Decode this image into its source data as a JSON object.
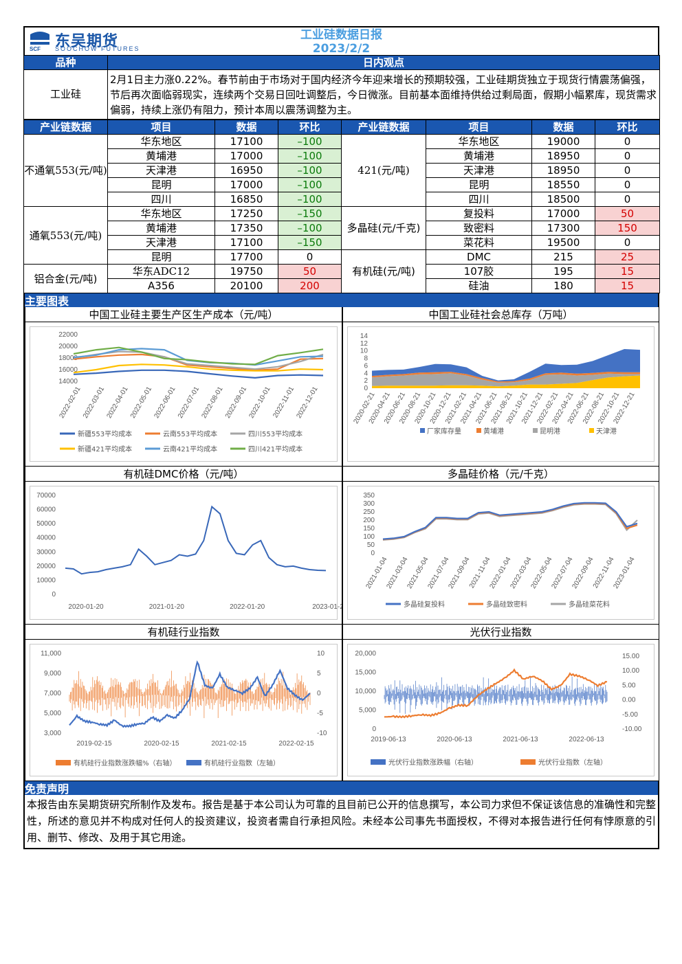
{
  "header": {
    "logo_cn": "东吴期货",
    "logo_en": "SOOCHOW FUTURES",
    "logo_abbr": "SCF",
    "title": "工业硅数据日报",
    "date": "2023/2/2"
  },
  "summary": {
    "col_product": "品种",
    "col_view": "日内观点",
    "product": "工业硅",
    "view": "2月1日主力涨0.22%。春节前由于市场对于国内经济今年迎来增长的预期较强，工业硅期货独立于现货行情震荡偏强，节后再次面临弱现实，连续两个交易日回吐调整后，今日微涨。目前基本面维持供给过剩局面，假期小幅累库，现货需求偏弱，持续上涨仍有阻力，预计本周以震荡调整为主。"
  },
  "table": {
    "headers": [
      "产业链数据",
      "项目",
      "数据",
      "环比",
      "产业链数据",
      "项目",
      "数据",
      "环比"
    ],
    "left_groups": [
      {
        "name": "不通氧553(元/吨)",
        "rows": [
          {
            "item": "华东地区",
            "value": "17100",
            "change": "–100",
            "tone": "green",
            "serif": false
          },
          {
            "item": "黄埔港",
            "value": "17000",
            "change": "–100",
            "tone": "green",
            "serif": false
          },
          {
            "item": "天津港",
            "value": "16950",
            "change": "–100",
            "tone": "green",
            "serif": false
          },
          {
            "item": "昆明",
            "value": "17000",
            "change": "–100",
            "tone": "green",
            "serif": false
          },
          {
            "item": "四川",
            "value": "16850",
            "change": "–100",
            "tone": "green",
            "serif": false
          }
        ]
      },
      {
        "name": "通氧553(元/吨)",
        "rows": [
          {
            "item": "华东地区",
            "value": "17250",
            "change": "–150",
            "tone": "green",
            "serif": true
          },
          {
            "item": "黄埔港",
            "value": "17350",
            "change": "–100",
            "tone": "green",
            "serif": false
          },
          {
            "item": "天津港",
            "value": "17100",
            "change": "–150",
            "tone": "green",
            "serif": false
          },
          {
            "item": "昆明",
            "value": "17700",
            "change": "0",
            "tone": "",
            "serif": false
          }
        ]
      },
      {
        "name": "铝合金(元/吨)",
        "rows": [
          {
            "item": "华东ADC12",
            "value": "19750",
            "change": "50",
            "tone": "red",
            "serif": true
          },
          {
            "item": "A356",
            "value": "20100",
            "change": "200",
            "tone": "red",
            "serif": false
          }
        ]
      }
    ],
    "right_groups": [
      {
        "name": "421(元/吨)",
        "rows": [
          {
            "item": "华东地区",
            "value": "19000",
            "change": "0",
            "tone": "",
            "serif": true
          },
          {
            "item": "黄埔港",
            "value": "18950",
            "change": "0",
            "tone": "",
            "serif": false
          },
          {
            "item": "天津港",
            "value": "18950",
            "change": "0",
            "tone": "",
            "serif": false
          },
          {
            "item": "昆明",
            "value": "18550",
            "change": "0",
            "tone": "",
            "serif": false
          },
          {
            "item": "四川",
            "value": "18500",
            "change": "0",
            "tone": "",
            "serif": false
          }
        ]
      },
      {
        "name": "多晶硅(元/千克)",
        "rows": [
          {
            "item": "复投料",
            "value": "17000",
            "change": "50",
            "tone": "red",
            "serif": false
          },
          {
            "item": "致密料",
            "value": "17300",
            "change": "150",
            "tone": "red",
            "serif": false
          },
          {
            "item": "菜花料",
            "value": "19500",
            "change": "0",
            "tone": "",
            "serif": false
          }
        ]
      },
      {
        "name": "有机硅(元/吨)",
        "rows": [
          {
            "item": "DMC",
            "value": "215",
            "change": "25",
            "tone": "red",
            "serif": false
          },
          {
            "item": "107胶",
            "value": "195",
            "change": "15",
            "tone": "red",
            "serif": false
          },
          {
            "item": "硅油",
            "value": "180",
            "change": "15",
            "tone": "red",
            "serif": false
          }
        ]
      }
    ]
  },
  "charts_band": "主要图表",
  "chart_data": [
    {
      "id": "cost",
      "type": "line",
      "title": "中国工业硅主要生产区生产成本（元/吨）",
      "x": [
        "2022-01",
        "2022-02",
        "2022-03",
        "2022-04",
        "2022-05",
        "2022-06",
        "2022-07",
        "2022-08",
        "2022-09",
        "2022-10",
        "2022-11",
        "2022-12"
      ],
      "xticks": [
        "2022-02-01",
        "2022-03-01",
        "2022-04-01",
        "2022-05-01",
        "2022-06-01",
        "2022-07-01",
        "2022-08-01",
        "2022-09-01",
        "2022-10-01",
        "2022-11-01",
        "2022-12-01"
      ],
      "ylim": [
        14000,
        22000
      ],
      "yticks": [
        "14000",
        "16000",
        "18000",
        "20000",
        "22000"
      ],
      "series": [
        {
          "name": "新疆553平均成本",
          "color": "#3867b8",
          "values": [
            15200,
            15400,
            15700,
            15900,
            15900,
            15700,
            15300,
            14900,
            14600,
            15000,
            15100,
            15000
          ]
        },
        {
          "name": "云南553平均成本",
          "color": "#ed7d31",
          "values": [
            17800,
            18200,
            18500,
            18600,
            18200,
            16800,
            16500,
            16200,
            15900,
            16100,
            17800,
            17900
          ]
        },
        {
          "name": "四川553平均成本",
          "color": "#a5a5a5",
          "values": [
            18000,
            18600,
            19100,
            19000,
            18200,
            17000,
            16700,
            16400,
            16100,
            16500,
            17400,
            18600
          ]
        },
        {
          "name": "新疆421平均成本",
          "color": "#ffc000",
          "values": [
            15500,
            16000,
            16700,
            16900,
            16800,
            16500,
            16100,
            15900,
            15800,
            15800,
            16100,
            16000
          ]
        },
        {
          "name": "云南421平均成本",
          "color": "#5b9bd5",
          "values": [
            18100,
            18500,
            19400,
            19600,
            19400,
            17600,
            17200,
            17100,
            16800,
            17500,
            18200,
            18300
          ]
        },
        {
          "name": "四川421平均成本",
          "color": "#70ad47",
          "values": [
            18700,
            19400,
            19800,
            19000,
            17900,
            17700,
            17300,
            17000,
            16900,
            18400,
            18900,
            19500
          ]
        }
      ]
    },
    {
      "id": "inventory",
      "type": "area",
      "title": "中国工业硅社会总库存（万吨）",
      "ylim": [
        0,
        14
      ],
      "yticks": [
        "0",
        "2",
        "4",
        "6",
        "8",
        "10",
        "12",
        "14"
      ],
      "xticks": [
        "2020-02-21",
        "2020-04-21",
        "2020-06-21",
        "2020-08-21",
        "2020-10-21",
        "2020-12-21",
        "2021-02-21",
        "2021-04-21",
        "2021-06-21",
        "2021-08-21",
        "2021-10-21",
        "2021-12-21",
        "2022-02-21",
        "2022-04-21",
        "2022-06-21",
        "2022-08-21",
        "2022-10-21",
        "2022-12-21"
      ],
      "series": [
        {
          "name": "厂家库存量",
          "color": "#4472c4",
          "values": [
            1.4,
            1.3,
            1.2,
            1.5,
            2.2,
            2.0,
            1.8,
            0.6,
            0.3,
            0.5,
            1.8,
            2.6,
            2.0,
            2.4,
            3.2,
            4.5,
            6.2,
            6.0
          ]
        },
        {
          "name": "黄埔港",
          "color": "#ed7d31",
          "values": [
            0.4,
            0.4,
            0.4,
            0.5,
            0.5,
            0.4,
            0.4,
            0.4,
            0.3,
            0.3,
            0.4,
            0.4,
            0.5,
            0.5,
            0.5,
            0.5,
            0.5,
            0.5
          ]
        },
        {
          "name": "昆明港",
          "color": "#a5a5a5",
          "values": [
            2.3,
            2.5,
            2.7,
            3.0,
            3.1,
            3.2,
            2.6,
            1.6,
            1.0,
            0.9,
            1.2,
            2.6,
            2.5,
            2.0,
            1.4,
            1.0,
            0.6,
            0.4
          ]
        },
        {
          "name": "天津港",
          "color": "#ffc000",
          "values": [
            0.6,
            0.7,
            0.7,
            0.7,
            0.7,
            0.8,
            0.8,
            0.7,
            0.5,
            0.7,
            1.0,
            1.0,
            1.2,
            1.4,
            2.2,
            2.9,
            3.2,
            3.4
          ]
        }
      ]
    },
    {
      "id": "dmc",
      "type": "line",
      "title": "有机硅DMC价格（元/吨）",
      "ylim": [
        0,
        70000
      ],
      "yticks": [
        "0",
        "10000",
        "20000",
        "30000",
        "40000",
        "50000",
        "60000",
        "70000"
      ],
      "xticks": [
        "2020-01-20",
        "2021-01-20",
        "2022-01-20",
        "2023-01-2"
      ],
      "series": [
        {
          "name": "DMC",
          "color": "#3867b8",
          "values": [
            18500,
            18000,
            14500,
            15500,
            16000,
            17500,
            18500,
            19500,
            21000,
            32000,
            27000,
            21000,
            22500,
            24000,
            28000,
            27000,
            28500,
            38000,
            62000,
            57000,
            38000,
            29000,
            28000,
            35000,
            38000,
            26000,
            21000,
            19500,
            20000,
            18500,
            17500,
            17000,
            16800
          ]
        }
      ]
    },
    {
      "id": "polysilicon",
      "type": "line",
      "title": "多晶硅价格（元/千克）",
      "ylim": [
        0,
        350
      ],
      "yticks": [
        "0",
        "50",
        "100",
        "150",
        "200",
        "250",
        "300",
        "350"
      ],
      "xticks": [
        "2021-01-04",
        "2021-03-04",
        "2021-05-04",
        "2021-07-04",
        "2021-09-04",
        "2021-11-04",
        "2022-01-04",
        "2022-03-04",
        "2022-05-04",
        "2022-07-04",
        "2022-09-04",
        "2022-11-04",
        "2023-01-04"
      ],
      "series": [
        {
          "name": "多晶硅复投料",
          "color": "#4472c4",
          "values": [
            85,
            90,
            100,
            130,
            155,
            215,
            215,
            210,
            210,
            245,
            250,
            230,
            235,
            240,
            245,
            250,
            265,
            285,
            300,
            305,
            305,
            302,
            250,
            160,
            180
          ]
        },
        {
          "name": "多晶硅致密料",
          "color": "#ed7d31",
          "values": [
            83,
            88,
            98,
            128,
            152,
            212,
            212,
            207,
            207,
            242,
            247,
            227,
            232,
            237,
            242,
            247,
            262,
            282,
            297,
            302,
            302,
            299,
            245,
            150,
            170
          ]
        },
        {
          "name": "多晶硅菜花料",
          "color": "#a5a5a5",
          "values": [
            80,
            85,
            95,
            125,
            148,
            208,
            208,
            203,
            203,
            238,
            243,
            223,
            228,
            233,
            238,
            243,
            258,
            278,
            293,
            298,
            298,
            295,
            240,
            140,
            200
          ]
        }
      ]
    },
    {
      "id": "silicone_index",
      "type": "line",
      "title": "有机硅行业指数",
      "ylim": [
        3000,
        11000
      ],
      "yticks": [
        "3,000",
        "5,000",
        "7,000",
        "9,000",
        "11,000"
      ],
      "y2ticks": [
        "-10",
        "-5",
        "0",
        "5",
        "10"
      ],
      "xticks": [
        "2019-02-15",
        "2020-02-15",
        "2021-02-15",
        "2022-02-15"
      ],
      "series": [
        {
          "name": "有机硅行业指数涨跌幅%（右轴）",
          "color": "#ed7d31"
        },
        {
          "name": "有机硅行业指数（左轴）",
          "color": "#4472c4",
          "values": [
            3800,
            4700,
            4200,
            4100,
            3900,
            3800,
            4300,
            3700,
            3700,
            3900,
            4000,
            4600,
            4200,
            4800,
            4500,
            5300,
            6500,
            10200,
            7800,
            7500,
            8900,
            7600,
            7300,
            7000,
            7500,
            8600,
            6700,
            7800,
            9300,
            7500,
            6800,
            6300,
            7000
          ]
        }
      ]
    },
    {
      "id": "pv_index",
      "type": "line",
      "title": "光伏行业指数",
      "ylim": [
        0,
        20000
      ],
      "yticks": [
        "0",
        "5,000",
        "10,000",
        "15,000",
        "20,000"
      ],
      "y2ticks": [
        "-10.00",
        "-5.00",
        "0.00",
        "5.00",
        "10.00",
        "15.00"
      ],
      "xticks": [
        "2019-06-13",
        "2020-06-13",
        "2021-06-13",
        "2022-06-13"
      ],
      "series": [
        {
          "name": "光伏行业指数涨跌幅（右轴）",
          "color": "#4472c4"
        },
        {
          "name": "光伏行业指数（左轴）",
          "color": "#ed7d31",
          "values": [
            3200,
            3300,
            3200,
            3500,
            3800,
            3600,
            4200,
            5500,
            6300,
            6200,
            8700,
            10500,
            12000,
            13500,
            15500,
            13200,
            14000,
            12800,
            10500,
            11500,
            14500,
            14000,
            13000,
            11500,
            12500
          ]
        }
      ]
    }
  ],
  "disclaimer": {
    "band": "免责声明",
    "text": "本报告由东吴期货研究所制作及发布。报告是基于本公司认为可靠的且目前已公开的信息撰写，本公司力求但不保证该信息的准确性和完整性，所述的意见并不构成对任何人的投资建议，投资者需自行承担风险。未经本公司事先书面授权，不得对本报告进行任何有悖原意的引用、删节、修改、及用于其它用途。"
  }
}
